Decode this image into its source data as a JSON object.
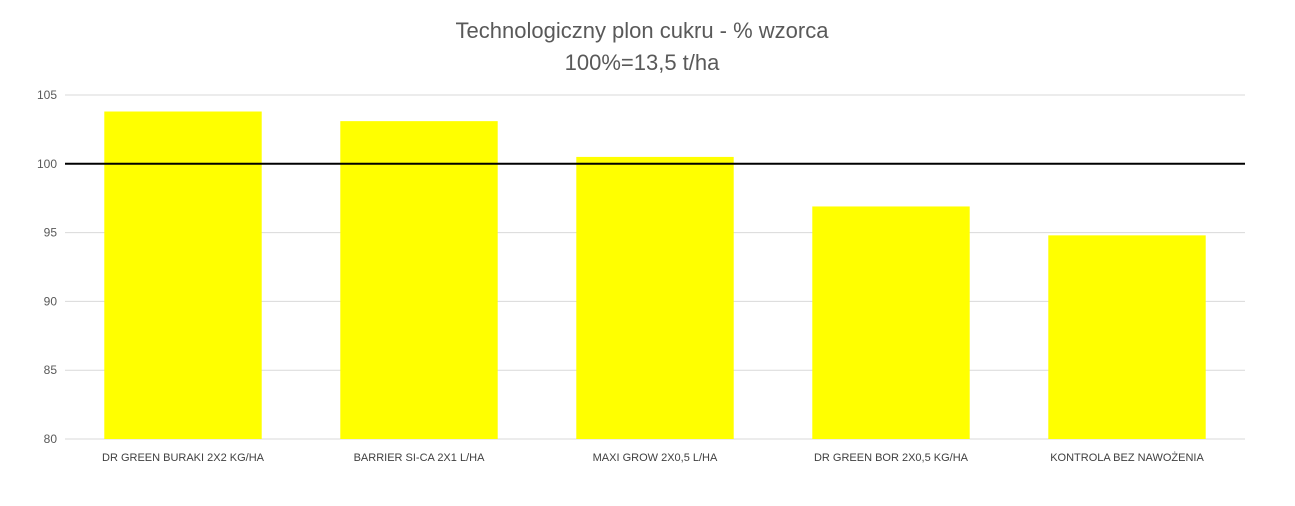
{
  "chart_data": {
    "type": "bar",
    "title": "Technologiczny plon cukru - % wzorca",
    "subtitle": "100%=13,5 t/ha",
    "xlabel": "",
    "ylabel": "",
    "categories": [
      "DR GREEN BURAKI 2X2 KG/HA",
      "BARRIER SI-CA 2X1 L/HA",
      "MAXI GROW 2X0,5 L/HA",
      "DR GREEN BOR 2X0,5 KG/HA",
      "KONTROLA BEZ NAWOŻENIA"
    ],
    "values": [
      103.8,
      103.1,
      100.5,
      96.9,
      94.8
    ],
    "ylim": [
      80,
      105
    ],
    "yticks": [
      80,
      85,
      90,
      95,
      100,
      105
    ],
    "reference_line": 100,
    "grid": true,
    "legend": "none",
    "colors": {
      "bar": "#FFFF00",
      "reference": "#000000",
      "grid": "#D9D9D9"
    }
  }
}
